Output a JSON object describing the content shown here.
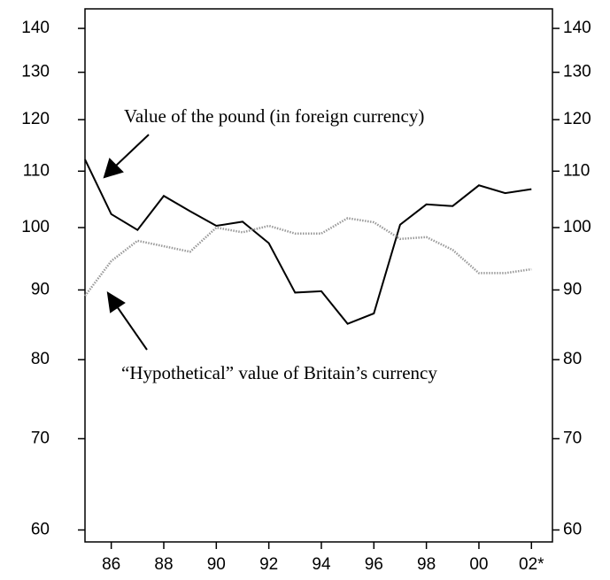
{
  "chart_data": {
    "type": "line",
    "log_y": true,
    "annotations": [
      "Value of the pound (in foreign currency)",
      "“Hypothetical” value of Britain’s currency"
    ],
    "x": [
      1985,
      1986,
      1987,
      1988,
      1989,
      1990,
      1991,
      1992,
      1993,
      1994,
      1995,
      1996,
      1997,
      1998,
      1999,
      2000,
      2001,
      2002
    ],
    "series": [
      {
        "name": "Value of the pound (in foreign currency)",
        "color": "#000000",
        "style": "solid",
        "values": [
          112.2,
          102.3,
          99.6,
          105.5,
          102.8,
          100.3,
          101,
          97.4,
          89.6,
          89.8,
          85,
          86.5,
          100.5,
          104,
          103.7,
          107.4,
          106,
          106.7
        ]
      },
      {
        "name": "“Hypothetical” value of Britain’s currency",
        "color": "#999999",
        "style": "dotted",
        "values": [
          89.1,
          94.5,
          97.8,
          96.9,
          96,
          100,
          99.2,
          100.3,
          99,
          99,
          101.6,
          100.9,
          98.1,
          98.4,
          96.3,
          92.6,
          92.6,
          93.2
        ]
      }
    ],
    "xlim": [
      1985,
      2002.8
    ],
    "xticks": [
      {
        "value": 1986,
        "label": "86"
      },
      {
        "value": 1988,
        "label": "88"
      },
      {
        "value": 1990,
        "label": "90"
      },
      {
        "value": 1992,
        "label": "92"
      },
      {
        "value": 1994,
        "label": "94"
      },
      {
        "value": 1996,
        "label": "96"
      },
      {
        "value": 1998,
        "label": "98"
      },
      {
        "value": 2000,
        "label": "00"
      },
      {
        "value": 2002,
        "label": "02*"
      }
    ],
    "ylim": [
      58.8,
      144.7
    ],
    "yticks": [
      60,
      70,
      80,
      90,
      100,
      110,
      120,
      130,
      140
    ]
  }
}
